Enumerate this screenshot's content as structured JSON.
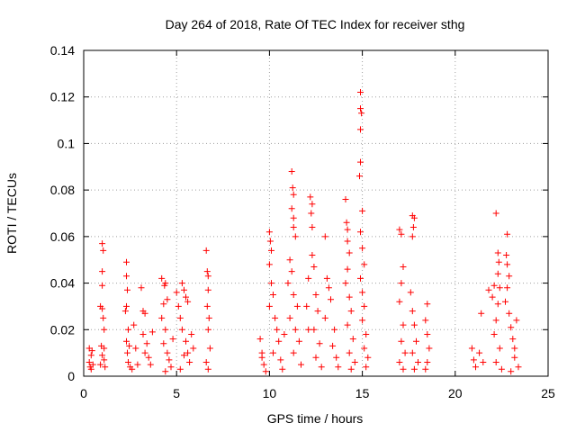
{
  "chart_data": {
    "type": "scatter",
    "title": "Day 264 of 2018, Rate Of TEC Index for receiver sthg",
    "xlabel": "GPS time / hours",
    "ylabel": "ROTI / TECUs",
    "xlim": [
      0,
      25
    ],
    "ylim": [
      0,
      0.14
    ],
    "xticks": [
      0,
      5,
      10,
      15,
      20,
      25
    ],
    "xtick_labels": [
      "0",
      "5",
      "10",
      "15",
      "20",
      "25"
    ],
    "yticks": [
      0,
      0.02,
      0.04,
      0.06,
      0.08,
      0.1,
      0.12,
      0.14
    ],
    "ytick_labels": [
      "0",
      "0.02",
      "0.04",
      "0.06",
      "0.08",
      "0.1",
      "0.12",
      "0.14"
    ],
    "grid": true,
    "marker": "+",
    "color": "#ff0000",
    "series": [
      {
        "name": "ROTI",
        "points": [
          [
            0.3,
            0.012
          ],
          [
            0.3,
            0.006
          ],
          [
            0.35,
            0.004
          ],
          [
            0.4,
            0.009
          ],
          [
            0.45,
            0.011
          ],
          [
            0.5,
            0.005
          ],
          [
            0.4,
            0.003
          ],
          [
            0.9,
            0.03
          ],
          [
            1.0,
            0.057
          ],
          [
            1.05,
            0.054
          ],
          [
            1.0,
            0.045
          ],
          [
            1.0,
            0.039
          ],
          [
            1.0,
            0.029
          ],
          [
            1.05,
            0.025
          ],
          [
            1.1,
            0.02
          ],
          [
            0.95,
            0.013
          ],
          [
            1.0,
            0.009
          ],
          [
            1.1,
            0.007
          ],
          [
            0.9,
            0.005
          ],
          [
            1.1,
            0.012
          ],
          [
            1.15,
            0.004
          ],
          [
            2.3,
            0.049
          ],
          [
            2.3,
            0.043
          ],
          [
            2.35,
            0.037
          ],
          [
            2.3,
            0.03
          ],
          [
            2.25,
            0.028
          ],
          [
            2.4,
            0.02
          ],
          [
            2.3,
            0.015
          ],
          [
            2.35,
            0.01
          ],
          [
            2.4,
            0.006
          ],
          [
            2.5,
            0.004
          ],
          [
            2.6,
            0.003
          ],
          [
            2.45,
            0.013
          ],
          [
            2.7,
            0.022
          ],
          [
            2.8,
            0.012
          ],
          [
            2.9,
            0.005
          ],
          [
            3.1,
            0.038
          ],
          [
            3.2,
            0.028
          ],
          [
            3.3,
            0.027
          ],
          [
            3.2,
            0.018
          ],
          [
            3.3,
            0.01
          ],
          [
            3.4,
            0.014
          ],
          [
            3.5,
            0.008
          ],
          [
            3.6,
            0.005
          ],
          [
            3.7,
            0.019
          ],
          [
            4.2,
            0.042
          ],
          [
            4.35,
            0.039
          ],
          [
            4.4,
            0.04
          ],
          [
            4.3,
            0.031
          ],
          [
            4.5,
            0.033
          ],
          [
            4.2,
            0.025
          ],
          [
            4.4,
            0.02
          ],
          [
            4.3,
            0.014
          ],
          [
            4.5,
            0.01
          ],
          [
            4.6,
            0.007
          ],
          [
            4.7,
            0.004
          ],
          [
            4.4,
            0.002
          ],
          [
            4.8,
            0.016
          ],
          [
            5.0,
            0.036
          ],
          [
            5.1,
            0.03
          ],
          [
            5.2,
            0.025
          ],
          [
            5.3,
            0.04
          ],
          [
            5.4,
            0.037
          ],
          [
            5.5,
            0.034
          ],
          [
            5.6,
            0.032
          ],
          [
            5.3,
            0.02
          ],
          [
            5.5,
            0.015
          ],
          [
            5.6,
            0.01
          ],
          [
            5.7,
            0.006
          ],
          [
            5.8,
            0.018
          ],
          [
            5.9,
            0.012
          ],
          [
            5.2,
            0.003
          ],
          [
            5.4,
            0.009
          ],
          [
            6.6,
            0.054
          ],
          [
            6.65,
            0.045
          ],
          [
            6.7,
            0.043
          ],
          [
            6.7,
            0.037
          ],
          [
            6.65,
            0.03
          ],
          [
            6.75,
            0.025
          ],
          [
            6.7,
            0.02
          ],
          [
            6.8,
            0.012
          ],
          [
            6.6,
            0.006
          ],
          [
            6.7,
            0.003
          ],
          [
            9.5,
            0.016
          ],
          [
            9.6,
            0.01
          ],
          [
            9.7,
            0.005
          ],
          [
            9.8,
            0.002
          ],
          [
            9.6,
            0.008
          ],
          [
            10.0,
            0.062
          ],
          [
            10.05,
            0.058
          ],
          [
            10.1,
            0.054
          ],
          [
            10.0,
            0.048
          ],
          [
            10.1,
            0.04
          ],
          [
            10.2,
            0.035
          ],
          [
            10.0,
            0.03
          ],
          [
            10.3,
            0.025
          ],
          [
            10.4,
            0.02
          ],
          [
            10.5,
            0.015
          ],
          [
            10.2,
            0.01
          ],
          [
            10.6,
            0.007
          ],
          [
            10.7,
            0.003
          ],
          [
            10.8,
            0.018
          ],
          [
            11.2,
            0.088
          ],
          [
            11.25,
            0.081
          ],
          [
            11.3,
            0.078
          ],
          [
            11.2,
            0.072
          ],
          [
            11.3,
            0.068
          ],
          [
            11.3,
            0.064
          ],
          [
            11.4,
            0.06
          ],
          [
            11.1,
            0.05
          ],
          [
            11.2,
            0.045
          ],
          [
            11.0,
            0.04
          ],
          [
            11.3,
            0.035
          ],
          [
            11.5,
            0.03
          ],
          [
            11.1,
            0.025
          ],
          [
            11.4,
            0.02
          ],
          [
            11.6,
            0.015
          ],
          [
            11.3,
            0.01
          ],
          [
            11.7,
            0.005
          ],
          [
            12.0,
            0.03
          ],
          [
            12.1,
            0.02
          ],
          [
            12.2,
            0.077
          ],
          [
            12.3,
            0.074
          ],
          [
            12.25,
            0.07
          ],
          [
            12.3,
            0.064
          ],
          [
            12.3,
            0.052
          ],
          [
            12.4,
            0.047
          ],
          [
            12.1,
            0.042
          ],
          [
            12.5,
            0.035
          ],
          [
            12.6,
            0.028
          ],
          [
            12.4,
            0.02
          ],
          [
            12.7,
            0.014
          ],
          [
            12.5,
            0.008
          ],
          [
            12.8,
            0.004
          ],
          [
            13.0,
            0.06
          ],
          [
            13.1,
            0.042
          ],
          [
            13.2,
            0.038
          ],
          [
            13.3,
            0.033
          ],
          [
            13.0,
            0.025
          ],
          [
            13.5,
            0.02
          ],
          [
            13.4,
            0.013
          ],
          [
            13.6,
            0.008
          ],
          [
            13.7,
            0.004
          ],
          [
            14.1,
            0.076
          ],
          [
            14.15,
            0.066
          ],
          [
            14.2,
            0.063
          ],
          [
            14.2,
            0.058
          ],
          [
            14.3,
            0.053
          ],
          [
            14.2,
            0.046
          ],
          [
            14.1,
            0.04
          ],
          [
            14.3,
            0.034
          ],
          [
            14.4,
            0.028
          ],
          [
            14.2,
            0.022
          ],
          [
            14.5,
            0.016
          ],
          [
            14.3,
            0.01
          ],
          [
            14.6,
            0.006
          ],
          [
            14.4,
            0.003
          ],
          [
            14.9,
            0.122
          ],
          [
            14.9,
            0.115
          ],
          [
            14.95,
            0.113
          ],
          [
            14.9,
            0.106
          ],
          [
            14.9,
            0.092
          ],
          [
            14.85,
            0.086
          ],
          [
            15.0,
            0.071
          ],
          [
            14.9,
            0.062
          ],
          [
            15.0,
            0.055
          ],
          [
            15.1,
            0.048
          ],
          [
            14.9,
            0.042
          ],
          [
            15.0,
            0.036
          ],
          [
            15.1,
            0.03
          ],
          [
            15.0,
            0.024
          ],
          [
            15.2,
            0.018
          ],
          [
            15.1,
            0.012
          ],
          [
            15.3,
            0.008
          ],
          [
            15.2,
            0.004
          ],
          [
            17.0,
            0.063
          ],
          [
            17.1,
            0.061
          ],
          [
            17.2,
            0.047
          ],
          [
            17.1,
            0.04
          ],
          [
            17.0,
            0.032
          ],
          [
            17.2,
            0.022
          ],
          [
            17.1,
            0.015
          ],
          [
            17.3,
            0.01
          ],
          [
            17.0,
            0.006
          ],
          [
            17.2,
            0.003
          ],
          [
            17.7,
            0.069
          ],
          [
            17.8,
            0.068
          ],
          [
            17.75,
            0.064
          ],
          [
            17.7,
            0.06
          ],
          [
            17.6,
            0.036
          ],
          [
            17.7,
            0.028
          ],
          [
            17.8,
            0.022
          ],
          [
            17.9,
            0.015
          ],
          [
            17.7,
            0.01
          ],
          [
            18.0,
            0.006
          ],
          [
            17.8,
            0.003
          ],
          [
            18.5,
            0.031
          ],
          [
            18.4,
            0.024
          ],
          [
            18.5,
            0.018
          ],
          [
            18.6,
            0.012
          ],
          [
            18.5,
            0.006
          ],
          [
            18.4,
            0.003
          ],
          [
            20.9,
            0.012
          ],
          [
            21.0,
            0.007
          ],
          [
            21.1,
            0.004
          ],
          [
            21.3,
            0.01
          ],
          [
            21.4,
            0.027
          ],
          [
            21.5,
            0.006
          ],
          [
            21.8,
            0.037
          ],
          [
            22.0,
            0.034
          ],
          [
            22.1,
            0.039
          ],
          [
            22.2,
            0.07
          ],
          [
            22.3,
            0.053
          ],
          [
            22.35,
            0.049
          ],
          [
            22.3,
            0.044
          ],
          [
            22.4,
            0.038
          ],
          [
            22.3,
            0.031
          ],
          [
            22.2,
            0.024
          ],
          [
            22.1,
            0.018
          ],
          [
            22.4,
            0.012
          ],
          [
            22.2,
            0.006
          ],
          [
            22.5,
            0.003
          ],
          [
            22.8,
            0.061
          ],
          [
            22.75,
            0.052
          ],
          [
            22.8,
            0.048
          ],
          [
            22.9,
            0.043
          ],
          [
            22.8,
            0.038
          ],
          [
            22.7,
            0.032
          ],
          [
            22.9,
            0.027
          ],
          [
            23.0,
            0.021
          ],
          [
            23.1,
            0.016
          ],
          [
            23.2,
            0.012
          ],
          [
            23.3,
            0.024
          ],
          [
            23.2,
            0.008
          ],
          [
            23.4,
            0.004
          ],
          [
            23.0,
            0.002
          ]
        ]
      }
    ]
  }
}
